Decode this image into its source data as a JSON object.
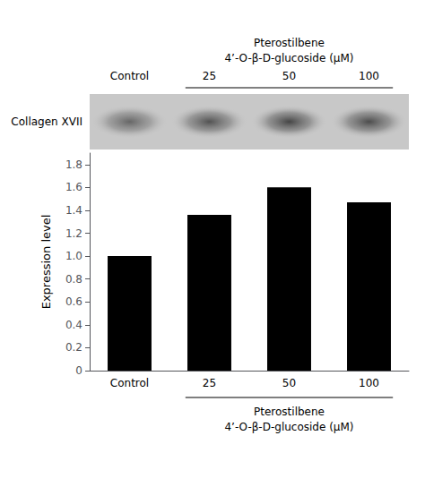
{
  "chart_data": [
    {
      "type": "blot",
      "title": "Pterostilbene\n4’-O-β-D-glucoside (μM)",
      "ylabel": "Collagen XVII",
      "categories": [
        "Control",
        "25",
        "50",
        "100"
      ],
      "values": [
        1.0,
        1.36,
        1.6,
        1.47
      ],
      "color": "#c8c8c8",
      "tick_labels": "x"
    },
    {
      "type": "bar",
      "xlabel": "Pterostilbene\n4’-O-β-D-glucoside (μM)",
      "ylabel": "Expression level",
      "categories": [
        "Control",
        "25",
        "50",
        "100"
      ],
      "values": [
        1.0,
        1.36,
        1.6,
        1.47
      ],
      "color": "#000000",
      "ylim": [
        0,
        1.9
      ],
      "yticks": [
        0,
        0.2,
        0.4,
        0.6,
        0.8,
        {
          "value": 1.0,
          "label": "1.0"
        },
        1.2,
        1.4,
        1.6,
        1.8
      ],
      "grid": false
    }
  ]
}
